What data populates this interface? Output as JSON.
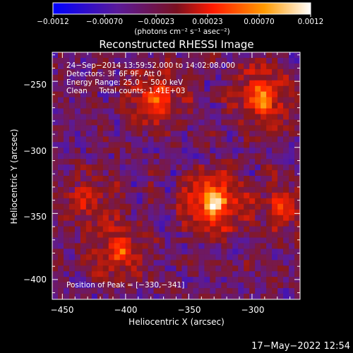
{
  "chart_data": {
    "type": "heatmap",
    "title": "Reconstructed RHESSI Image",
    "xlabel": "Heliocentric X (arcsec)",
    "ylabel": "Heliocentric Y (arcsec)",
    "xlim": [
      -458,
      -262
    ],
    "ylim": [
      -415,
      -228
    ],
    "x_ticks": [
      -450,
      -400,
      -350,
      -300
    ],
    "x_tick_labels": [
      "−450",
      "−400",
      "−350",
      "−300"
    ],
    "y_ticks": [
      -250,
      -300,
      -350,
      -400
    ],
    "y_tick_labels": [
      "−250",
      "−300",
      "−350",
      "−400"
    ],
    "colorbar": {
      "range": [
        -0.0012,
        0.0012
      ],
      "tick_labels": [
        "−0.0012",
        "−0.00070",
        "−0.00023",
        "0.00023",
        "0.00070",
        "0.0012"
      ],
      "unit_label": "(photons cm⁻² s⁻¹ asec⁻²)",
      "colormap": [
        "#0000ff",
        "#5a1a9a",
        "#8a1818",
        "#ff2000",
        "#ff9a00",
        "#ffffff"
      ]
    },
    "annotations": [
      "24−Sep−2014 13:59:52.000 to 14:02:08.000",
      "Detectors: 3F 6F 9F, Att 0",
      "Energy Range: 25.0 − 50.0 keV",
      "Clean     Total counts: 1.41E+03"
    ],
    "peak_label": "Position of Peak = [−330,−341]",
    "peak": [
      -330,
      -341
    ],
    "grid": false,
    "sources": [
      {
        "x": -330,
        "y": -341,
        "intensity": 1.0
      },
      {
        "x": -292,
        "y": -262,
        "intensity": 0.75
      },
      {
        "x": -375,
        "y": -262,
        "intensity": 0.6
      },
      {
        "x": -405,
        "y": -378,
        "intensity": 0.55
      },
      {
        "x": -430,
        "y": -340,
        "intensity": 0.35
      },
      {
        "x": -275,
        "y": -345,
        "intensity": 0.45
      }
    ]
  },
  "footer": {
    "timestamp": "17−May−2022 12:54"
  }
}
